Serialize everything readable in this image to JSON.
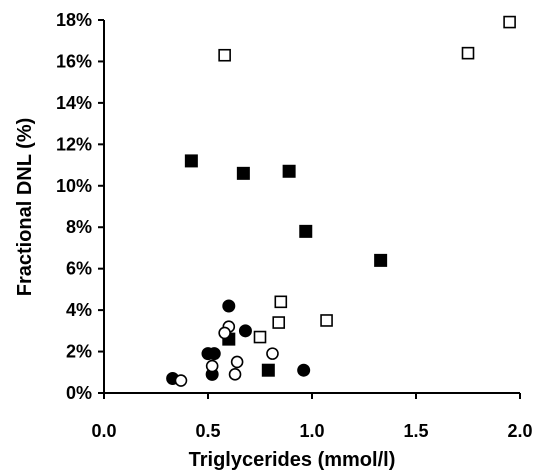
{
  "chart_data": {
    "type": "scatter",
    "xlabel": "Triglycerides (mmol/l)",
    "ylabel": "Fractional DNL (%)",
    "xlim": [
      0,
      2.0
    ],
    "ylim": [
      0,
      18
    ],
    "x_ticks": [
      0.0,
      0.5,
      1.0,
      1.5,
      2.0
    ],
    "x_tick_labels": [
      "0.0",
      "0.5",
      "1.0",
      "1.5",
      "2.0"
    ],
    "y_ticks": [
      0,
      2,
      4,
      6,
      8,
      10,
      12,
      14,
      16,
      18
    ],
    "y_tick_labels": [
      "0%",
      "2%",
      "4%",
      "6%",
      "8%",
      "10%",
      "12%",
      "14%",
      "16%",
      "18%"
    ],
    "grid": false,
    "legend": "none",
    "series": [
      {
        "marker": "filled-square",
        "points": [
          {
            "x": 0.42,
            "y": 11.2
          },
          {
            "x": 0.67,
            "y": 10.6
          },
          {
            "x": 0.89,
            "y": 10.7
          },
          {
            "x": 0.97,
            "y": 7.8
          },
          {
            "x": 1.33,
            "y": 6.4
          },
          {
            "x": 0.6,
            "y": 2.6
          },
          {
            "x": 0.79,
            "y": 1.1
          }
        ]
      },
      {
        "marker": "open-square",
        "points": [
          {
            "x": 0.58,
            "y": 16.3
          },
          {
            "x": 1.75,
            "y": 16.4
          },
          {
            "x": 1.95,
            "y": 17.9
          },
          {
            "x": 0.85,
            "y": 4.4
          },
          {
            "x": 0.84,
            "y": 3.4
          },
          {
            "x": 1.07,
            "y": 3.5
          },
          {
            "x": 0.75,
            "y": 2.7
          }
        ]
      },
      {
        "marker": "filled-circle",
        "points": [
          {
            "x": 0.6,
            "y": 4.2
          },
          {
            "x": 0.68,
            "y": 3.0
          },
          {
            "x": 0.5,
            "y": 1.9
          },
          {
            "x": 0.53,
            "y": 1.9
          },
          {
            "x": 0.52,
            "y": 0.9
          },
          {
            "x": 0.33,
            "y": 0.7
          },
          {
            "x": 0.96,
            "y": 1.1
          }
        ]
      },
      {
        "marker": "open-circle",
        "points": [
          {
            "x": 0.6,
            "y": 3.2
          },
          {
            "x": 0.58,
            "y": 2.9
          },
          {
            "x": 0.81,
            "y": 1.9
          },
          {
            "x": 0.64,
            "y": 1.5
          },
          {
            "x": 0.52,
            "y": 1.3
          },
          {
            "x": 0.63,
            "y": 0.9
          },
          {
            "x": 0.37,
            "y": 0.6
          }
        ]
      }
    ]
  }
}
